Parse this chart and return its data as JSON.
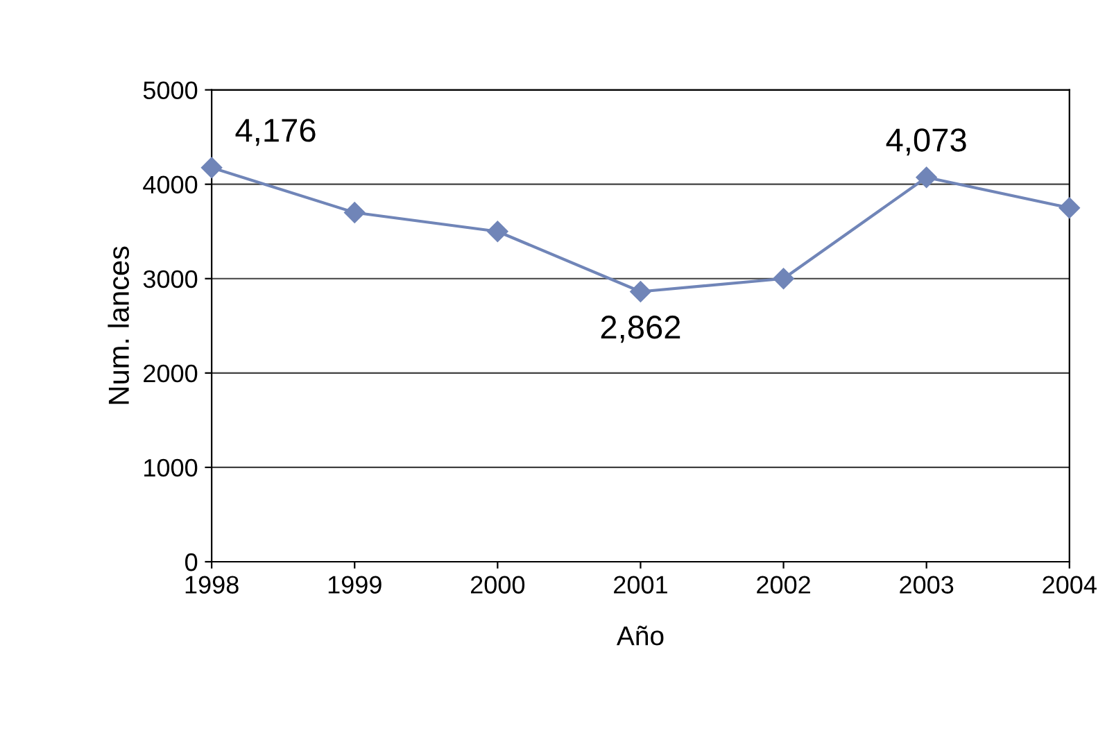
{
  "chart_data": {
    "type": "line",
    "xlabel": "Año",
    "ylabel": "Num. lances",
    "categories": [
      "1998",
      "1999",
      "2000",
      "2001",
      "2002",
      "2003",
      "2004"
    ],
    "series": [
      {
        "color": "#7085b8",
        "values": [
          4176,
          3700,
          3500,
          2862,
          3000,
          4073,
          3750
        ],
        "value_labels": [
          "4,176",
          null,
          null,
          "2,862",
          null,
          "4,073",
          null
        ]
      }
    ],
    "ylim": [
      0,
      5000
    ],
    "yticks": [
      0,
      1000,
      2000,
      3000,
      4000,
      5000
    ],
    "grid": "y",
    "marker": "diamond",
    "line_style": "solid",
    "legend": false
  }
}
